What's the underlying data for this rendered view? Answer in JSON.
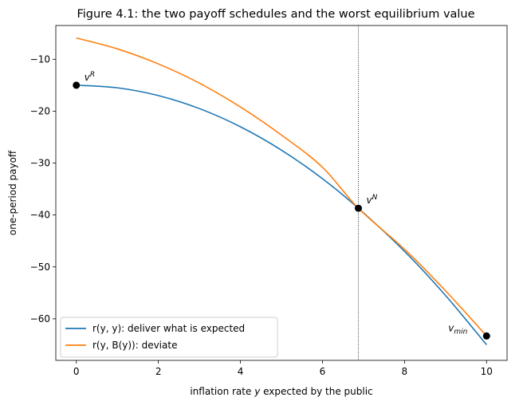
{
  "chart_data": {
    "type": "line",
    "title": "Figure 4.1: the two payoff schedules and the worst equilibrium value",
    "xlabel": "inflation rate y expected by the public",
    "ylabel": "one-period payoff",
    "xlim": [
      -0.5,
      10.5
    ],
    "ylim": [
      -68,
      -3.5
    ],
    "x_ticks": [
      0,
      2,
      4,
      6,
      8,
      10
    ],
    "y_ticks": [
      -10,
      -20,
      -30,
      -40,
      -50,
      -60
    ],
    "grid": false,
    "legend_position": "lower-left",
    "x": [
      0,
      1,
      2,
      3,
      4,
      5,
      6,
      6.875,
      8,
      9,
      10
    ],
    "series": [
      {
        "name": "r(y, y): deliver what is expected",
        "color": "#1f77b4",
        "values": [
          -15.0,
          -15.5,
          -17.0,
          -19.5,
          -23.0,
          -27.5,
          -33.0,
          -38.7,
          -47.0,
          -55.5,
          -65.0
        ]
      },
      {
        "name": "r(y, B(y)): deviate",
        "color": "#ff7f0e",
        "values": [
          -5.9,
          -8.0,
          -10.9,
          -14.6,
          -19.2,
          -24.6,
          -30.8,
          -38.7,
          -46.6,
          -54.6,
          -63.3
        ]
      }
    ],
    "vertical_line": {
      "x": 6.875,
      "style": "dotted"
    },
    "points": [
      {
        "label": "v",
        "sup": "R",
        "sub": "",
        "x": 0,
        "y": -15.0
      },
      {
        "label": "v",
        "sup": "N",
        "sub": "",
        "x": 6.875,
        "y": -38.7
      },
      {
        "label": "v",
        "sup": "",
        "sub": "min",
        "x": 10,
        "y": -63.3
      }
    ]
  }
}
